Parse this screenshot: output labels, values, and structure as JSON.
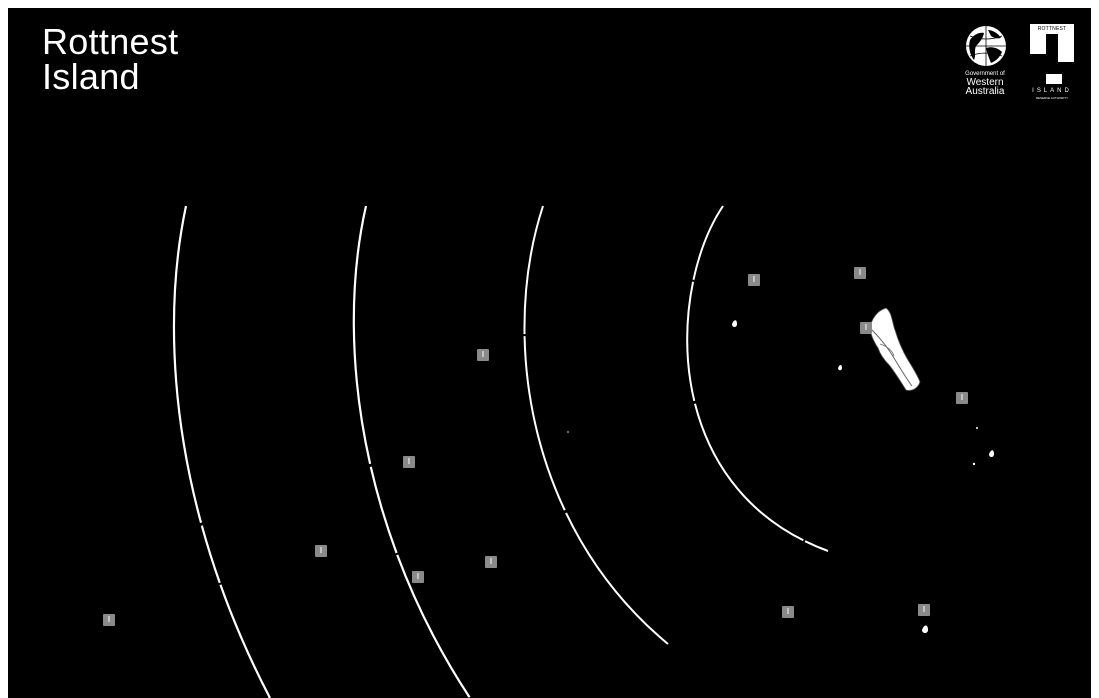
{
  "title": {
    "line1": "Rottnest",
    "line2": "Island"
  },
  "logos": {
    "wa": {
      "icon": "globe-icon",
      "line1": "Government of",
      "line2": "Western",
      "line3": "Australia"
    },
    "rottnest": {
      "icon": "rottnest-island-logo-icon",
      "top": "ROTTNEST",
      "word": "ISLAND",
      "sub": "RESERVE AUTHORITY"
    }
  },
  "markers": [
    {
      "label": "I",
      "icon": "marker-icon"
    },
    {
      "label": "I",
      "icon": "marker-icon"
    },
    {
      "label": "I",
      "icon": "marker-icon"
    },
    {
      "label": "I",
      "icon": "marker-icon"
    },
    {
      "label": "I",
      "icon": "marker-icon"
    },
    {
      "label": "I",
      "icon": "marker-icon"
    },
    {
      "label": "I",
      "icon": "marker-icon"
    },
    {
      "label": "I",
      "icon": "marker-icon"
    },
    {
      "label": "I",
      "icon": "marker-icon"
    },
    {
      "label": "I",
      "icon": "marker-icon"
    },
    {
      "label": "I",
      "icon": "marker-icon"
    },
    {
      "label": "I",
      "icon": "marker-icon"
    }
  ],
  "colors": {
    "background": "#000000",
    "foreground": "#ffffff",
    "marker": "#8a8a8a"
  }
}
